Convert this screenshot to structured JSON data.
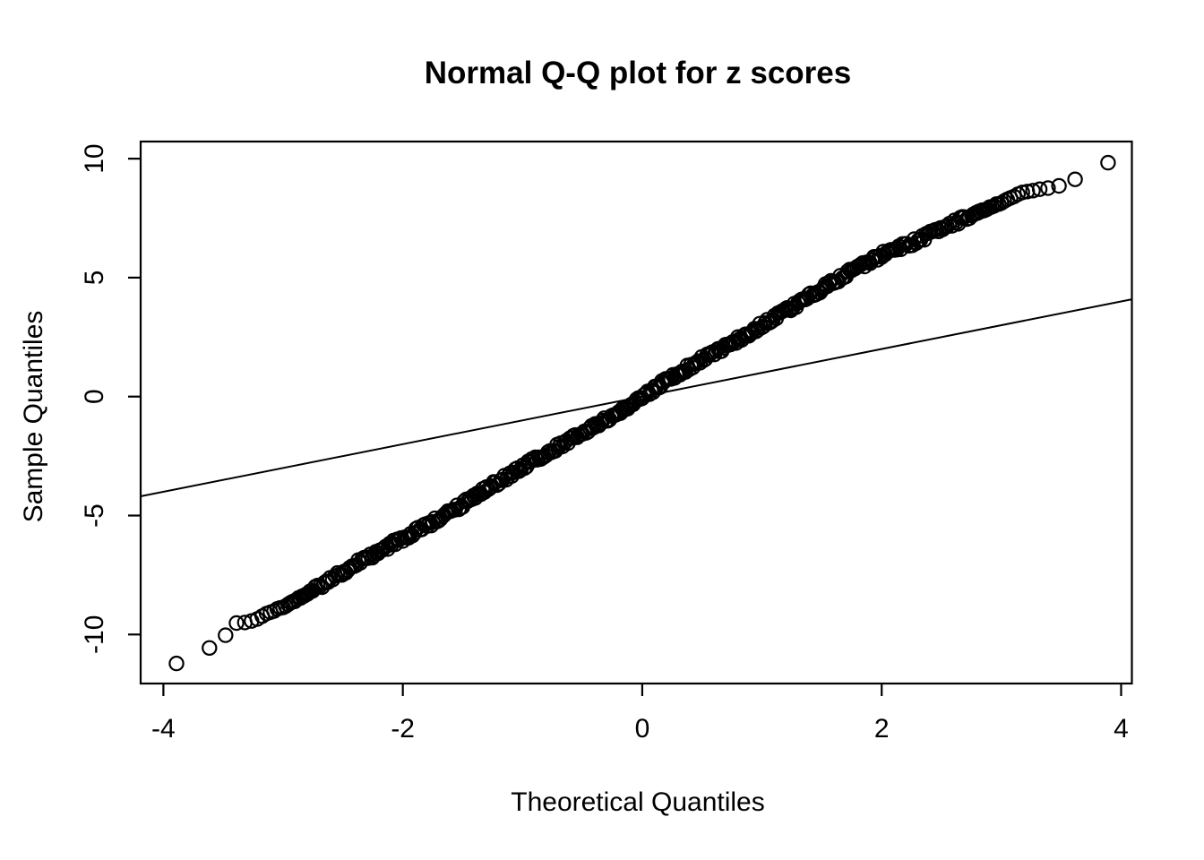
{
  "window": {
    "background": "#ffffff",
    "foreground": "#000000"
  },
  "chart_data": {
    "type": "scatter",
    "title": "Normal Q-Q plot for z scores",
    "xlabel": "Theoretical Quantiles",
    "ylabel": "Sample Quantiles",
    "x_ticks": [
      -4,
      -2,
      0,
      2,
      4
    ],
    "y_ticks": [
      -10,
      -5,
      0,
      5,
      10
    ],
    "xlim": [
      -4.19,
      4.09
    ],
    "ylim": [
      -12.06,
      10.72
    ],
    "grid": false,
    "legend": null,
    "marker": "open-circle",
    "point_color": "#000000",
    "n_points": 10000,
    "qq_curve": [
      [
        -3.89,
        -11.25
      ],
      [
        -3.62,
        -10.63
      ],
      [
        -3.48,
        -10.08
      ],
      [
        -3.4,
        -9.55
      ],
      [
        -3.33,
        -9.48
      ],
      [
        -3.25,
        -9.4
      ],
      [
        -3.1,
        -9.0
      ],
      [
        -3.0,
        -8.8
      ],
      [
        -2.6,
        -7.7
      ],
      [
        -2.0,
        -5.96
      ],
      [
        -1.0,
        -3.02
      ],
      [
        0.0,
        0.0
      ],
      [
        1.0,
        3.05
      ],
      [
        2.0,
        5.95
      ],
      [
        2.6,
        7.3
      ],
      [
        3.0,
        8.1
      ],
      [
        3.17,
        8.55
      ],
      [
        3.29,
        8.67
      ],
      [
        3.38,
        8.77
      ],
      [
        3.52,
        8.96
      ],
      [
        3.89,
        9.85
      ]
    ],
    "reference_line": {
      "slope": 1,
      "intercept": 0,
      "description": "thin straight line y = x"
    },
    "left_tail_points": [
      [
        -3.89,
        -11.25
      ],
      [
        -3.62,
        -10.63
      ],
      [
        -3.47,
        -10.06
      ],
      [
        -3.4,
        -9.55
      ],
      [
        -3.35,
        -9.5
      ],
      [
        -3.31,
        -9.46
      ],
      [
        -3.27,
        -9.42
      ]
    ],
    "right_tail_points": [
      [
        3.17,
        8.55
      ],
      [
        3.22,
        8.6
      ],
      [
        3.29,
        8.67
      ],
      [
        3.38,
        8.77
      ],
      [
        3.52,
        8.96
      ],
      [
        3.78,
        9.83
      ]
    ],
    "jitter_amplitude": 0.12
  }
}
